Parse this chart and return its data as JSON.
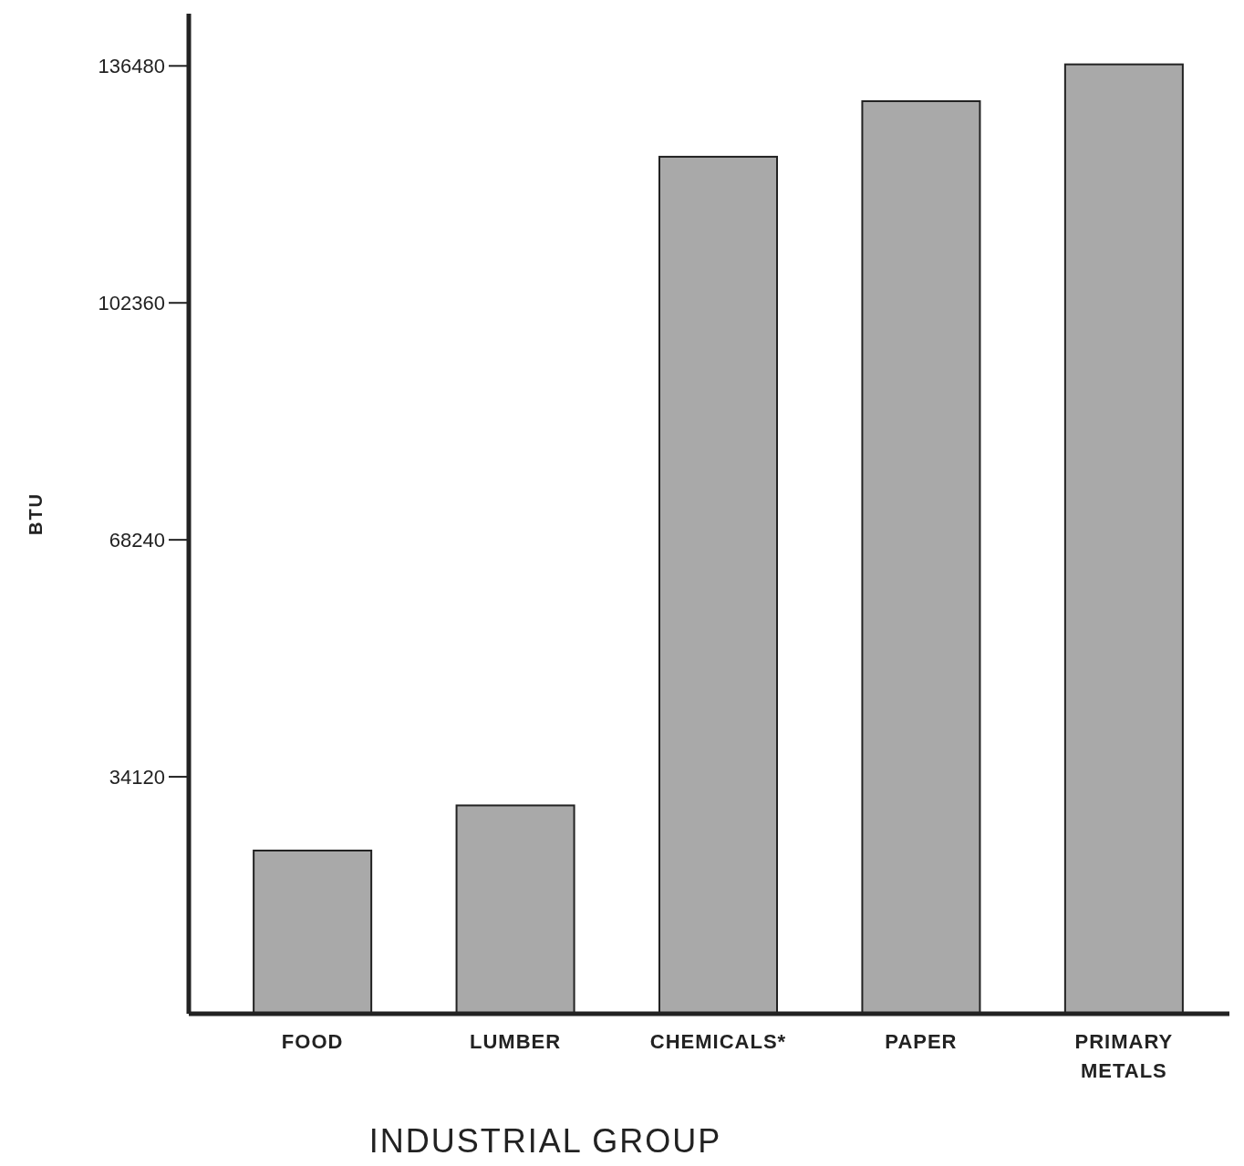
{
  "chart_data": {
    "type": "bar",
    "xlabel": "INDUSTRIAL GROUP",
    "ylabel": "BTU",
    "categories": [
      "FOOD",
      "LUMBER",
      "CHEMICALS*",
      "PAPER",
      "PRIMARY METALS"
    ],
    "values": [
      23500,
      30000,
      123400,
      131400,
      136700
    ],
    "color": "#a9a9a9",
    "ylim": [
      0,
      144000
    ],
    "yticks": [
      34120,
      68240,
      102360,
      136480
    ]
  }
}
